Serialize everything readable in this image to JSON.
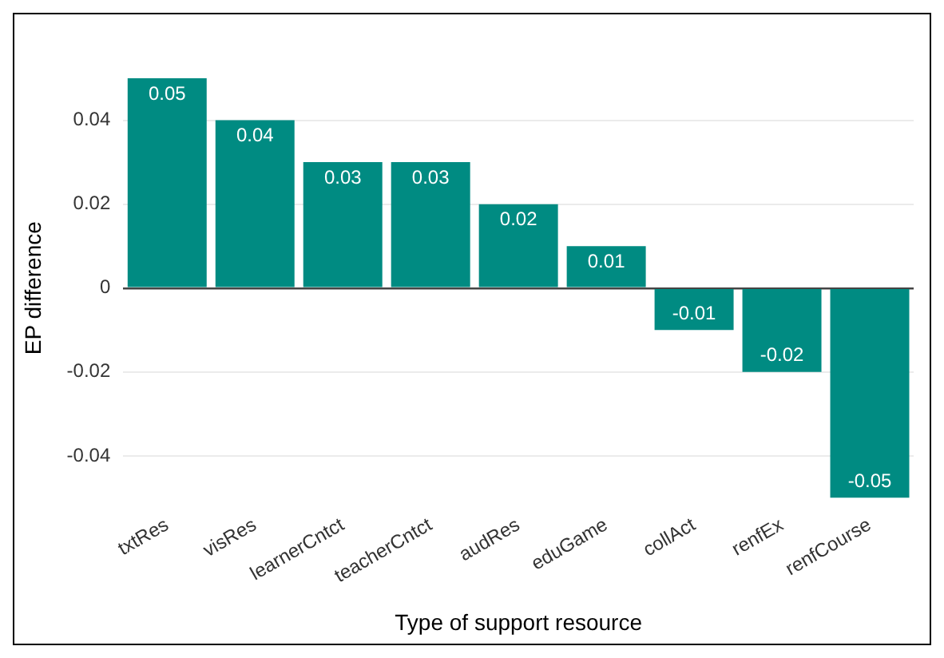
{
  "chart_data": {
    "type": "bar",
    "xlabel": "Type of support resource",
    "ylabel": "EP difference",
    "categories": [
      "txtRes",
      "visRes",
      "learnerCntct",
      "teacherCntct",
      "audRes",
      "eduGame",
      "collAct",
      "renfEx",
      "renfCourse"
    ],
    "values": [
      0.05,
      0.04,
      0.03,
      0.03,
      0.02,
      0.01,
      -0.01,
      -0.02,
      -0.05
    ],
    "color": "#008b82",
    "ylim": [
      -0.05,
      0.05
    ],
    "yticks": [
      -0.04,
      -0.02,
      0,
      0.02,
      0.04
    ],
    "grid": "y",
    "data_labels": true,
    "legend": false
  }
}
